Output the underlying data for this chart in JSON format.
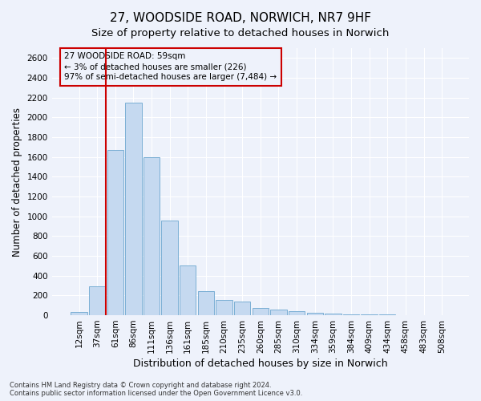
{
  "title": "27, WOODSIDE ROAD, NORWICH, NR7 9HF",
  "subtitle": "Size of property relative to detached houses in Norwich",
  "xlabel": "Distribution of detached houses by size in Norwich",
  "ylabel": "Number of detached properties",
  "bar_color": "#c5d9f0",
  "bar_edge_color": "#7bafd4",
  "categories": [
    "12sqm",
    "37sqm",
    "61sqm",
    "86sqm",
    "111sqm",
    "136sqm",
    "161sqm",
    "185sqm",
    "210sqm",
    "235sqm",
    "260sqm",
    "285sqm",
    "310sqm",
    "334sqm",
    "359sqm",
    "384sqm",
    "409sqm",
    "434sqm",
    "458sqm",
    "483sqm",
    "508sqm"
  ],
  "values": [
    30,
    290,
    1670,
    2150,
    1600,
    960,
    500,
    240,
    155,
    135,
    75,
    55,
    40,
    25,
    15,
    12,
    10,
    6,
    4,
    3,
    2
  ],
  "property_line_x": 1.5,
  "property_line_color": "#cc0000",
  "annotation_line1": "27 WOODSIDE ROAD: 59sqm",
  "annotation_line2": "← 3% of detached houses are smaller (226)",
  "annotation_line3": "97% of semi-detached houses are larger (7,484) →",
  "annotation_box_color": "#cc0000",
  "ylim": [
    0,
    2700
  ],
  "yticks": [
    0,
    200,
    400,
    600,
    800,
    1000,
    1200,
    1400,
    1600,
    1800,
    2000,
    2200,
    2400,
    2600
  ],
  "footer1": "Contains HM Land Registry data © Crown copyright and database right 2024.",
  "footer2": "Contains public sector information licensed under the Open Government Licence v3.0.",
  "background_color": "#eef2fb",
  "grid_color": "#ffffff",
  "title_fontsize": 11,
  "subtitle_fontsize": 9.5,
  "tick_fontsize": 7.5,
  "ylabel_fontsize": 8.5,
  "xlabel_fontsize": 9
}
